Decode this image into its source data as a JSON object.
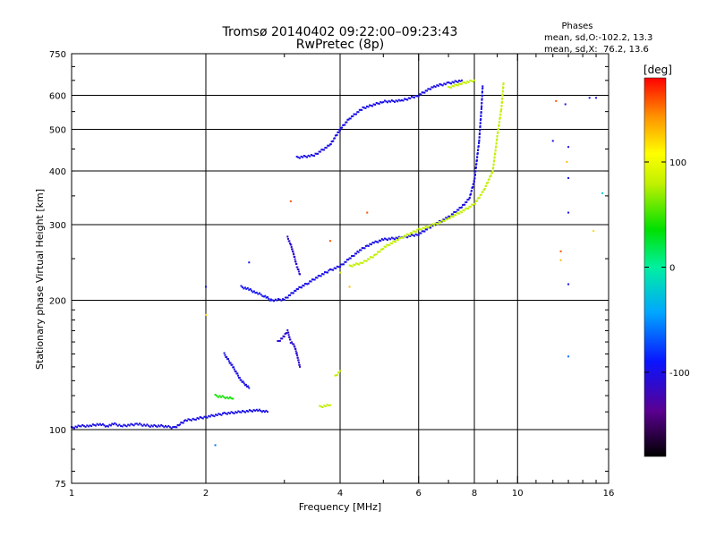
{
  "chart_data": {
    "type": "scatter",
    "title": "Tromsø 20140402 09:22:00–09:23:43",
    "subtitle": "RwPretec (8p)",
    "xlabel": "Frequency [MHz]",
    "ylabel": "Stationary phase Virtual Height [km]",
    "x_scale": "log",
    "y_scale": "log",
    "xlim": [
      1,
      16
    ],
    "ylim": [
      75,
      750
    ],
    "x_ticks": [
      {
        "value": 1,
        "label": "1"
      },
      {
        "value": 2,
        "label": "2"
      },
      {
        "value": 4,
        "label": "4"
      },
      {
        "value": 6,
        "label": "6"
      },
      {
        "value": 8,
        "label": "8"
      },
      {
        "value": 10,
        "label": "10"
      },
      {
        "value": 16,
        "label": "16"
      }
    ],
    "y_ticks": [
      {
        "value": 75,
        "label": "75"
      },
      {
        "value": 100,
        "label": "100"
      },
      {
        "value": 200,
        "label": "200"
      },
      {
        "value": 300,
        "label": "300"
      },
      {
        "value": 400,
        "label": "400"
      },
      {
        "value": 500,
        "label": "500"
      },
      {
        "value": 600,
        "label": "600"
      },
      {
        "value": 750,
        "label": "750"
      }
    ],
    "grid": true,
    "phase_info": {
      "heading": "Phases",
      "line_o": "mean, sd,O:-102.2, 13.3",
      "line_x": "mean, sd,X:  76.2, 13.6"
    },
    "colorbar": {
      "label": "[deg]",
      "range": [
        -180,
        180
      ],
      "ticks": [
        {
          "value": 100,
          "label": "100"
        },
        {
          "value": 0,
          "label": "0"
        },
        {
          "value": -100,
          "label": "-100"
        }
      ]
    },
    "colors": {
      "o_trace": "#1a1adc",
      "x_trace": "#d8ee1a",
      "grid": "#000000"
    },
    "traces": [
      {
        "phase": -100,
        "points": [
          [
            1.0,
            101
          ],
          [
            1.05,
            102
          ],
          [
            1.1,
            102
          ],
          [
            1.15,
            103
          ],
          [
            1.2,
            102
          ],
          [
            1.25,
            103
          ],
          [
            1.3,
            102
          ],
          [
            1.4,
            103
          ],
          [
            1.5,
            102
          ],
          [
            1.6,
            102
          ],
          [
            1.7,
            101
          ],
          [
            1.75,
            103
          ],
          [
            1.8,
            105
          ],
          [
            1.9,
            106
          ],
          [
            2.0,
            107
          ],
          [
            2.2,
            109
          ],
          [
            2.4,
            110
          ],
          [
            2.6,
            111
          ],
          [
            2.75,
            110
          ]
        ]
      },
      {
        "phase": -100,
        "points": [
          [
            2.8,
            200
          ],
          [
            3.0,
            201
          ],
          [
            3.2,
            212
          ],
          [
            3.4,
            220
          ],
          [
            3.6,
            228
          ],
          [
            3.8,
            235
          ],
          [
            4.0,
            240
          ],
          [
            4.2,
            250
          ],
          [
            4.4,
            260
          ],
          [
            4.6,
            268
          ],
          [
            4.8,
            273
          ],
          [
            5.0,
            277
          ],
          [
            5.5,
            280
          ],
          [
            6.0,
            285
          ],
          [
            6.5,
            300
          ],
          [
            7.0,
            312
          ],
          [
            7.5,
            330
          ],
          [
            7.8,
            345
          ],
          [
            8.0,
            380
          ],
          [
            8.2,
            470
          ],
          [
            8.3,
            560
          ],
          [
            8.35,
            630
          ]
        ]
      },
      {
        "phase": -100,
        "points": [
          [
            3.2,
            430
          ],
          [
            3.5,
            435
          ],
          [
            3.8,
            460
          ],
          [
            4.0,
            500
          ],
          [
            4.2,
            530
          ],
          [
            4.5,
            560
          ],
          [
            5.0,
            580
          ],
          [
            5.5,
            583
          ],
          [
            6.0,
            600
          ],
          [
            6.5,
            630
          ],
          [
            7.0,
            640
          ],
          [
            7.5,
            650
          ]
        ]
      },
      {
        "phase": -110,
        "points": [
          [
            3.05,
            280
          ],
          [
            3.1,
            270
          ],
          [
            3.15,
            255
          ],
          [
            3.2,
            240
          ],
          [
            3.25,
            230
          ]
        ]
      },
      {
        "phase": -95,
        "points": [
          [
            2.4,
            215
          ],
          [
            2.5,
            212
          ],
          [
            2.6,
            208
          ],
          [
            2.7,
            205
          ],
          [
            2.8,
            200
          ]
        ]
      },
      {
        "phase": -110,
        "points": [
          [
            2.9,
            160
          ],
          [
            3.0,
            165
          ],
          [
            3.05,
            170
          ],
          [
            3.1,
            160
          ],
          [
            3.15,
            158
          ],
          [
            3.2,
            150
          ],
          [
            3.25,
            140
          ]
        ]
      },
      {
        "phase": -100,
        "points": [
          [
            2.2,
            150
          ],
          [
            2.3,
            140
          ],
          [
            2.4,
            130
          ],
          [
            2.5,
            125
          ]
        ]
      },
      {
        "phase": 80,
        "points": [
          [
            4.2,
            240
          ],
          [
            4.5,
            245
          ],
          [
            4.8,
            255
          ],
          [
            5.0,
            265
          ],
          [
            5.5,
            280
          ],
          [
            6.0,
            292
          ],
          [
            6.5,
            300
          ],
          [
            7.0,
            310
          ],
          [
            7.5,
            322
          ],
          [
            8.0,
            335
          ],
          [
            8.4,
            360
          ],
          [
            8.8,
            400
          ],
          [
            9.0,
            480
          ],
          [
            9.2,
            560
          ],
          [
            9.3,
            640
          ]
        ]
      },
      {
        "phase": 80,
        "points": [
          [
            7.0,
            625
          ],
          [
            7.5,
            640
          ],
          [
            8.0,
            650
          ]
        ]
      },
      {
        "phase": 80,
        "points": [
          [
            3.9,
            133
          ],
          [
            4.0,
            137
          ]
        ]
      },
      {
        "phase": 80,
        "points": [
          [
            3.6,
            113
          ],
          [
            3.8,
            114
          ]
        ]
      },
      {
        "phase": 40,
        "points": [
          [
            2.1,
            120
          ],
          [
            2.3,
            118
          ]
        ]
      }
    ],
    "scatter": [
      {
        "x": 12.2,
        "y": 582,
        "phase": 160
      },
      {
        "x": 12.8,
        "y": 572,
        "phase": -100
      },
      {
        "x": 14.5,
        "y": 592,
        "phase": -100
      },
      {
        "x": 15.0,
        "y": 592,
        "phase": -100
      },
      {
        "x": 12.0,
        "y": 470,
        "phase": -100
      },
      {
        "x": 13.0,
        "y": 455,
        "phase": -100
      },
      {
        "x": 12.9,
        "y": 420,
        "phase": 130
      },
      {
        "x": 13.0,
        "y": 385,
        "phase": -100
      },
      {
        "x": 15.5,
        "y": 355,
        "phase": -20
      },
      {
        "x": 13.0,
        "y": 320,
        "phase": -100
      },
      {
        "x": 12.5,
        "y": 260,
        "phase": 160
      },
      {
        "x": 12.5,
        "y": 248,
        "phase": 130
      },
      {
        "x": 13.0,
        "y": 218,
        "phase": -100
      },
      {
        "x": 14.8,
        "y": 290,
        "phase": 120
      },
      {
        "x": 13.0,
        "y": 148,
        "phase": -60
      },
      {
        "x": 2.0,
        "y": 185,
        "phase": 120
      },
      {
        "x": 2.1,
        "y": 92,
        "phase": -60
      },
      {
        "x": 3.1,
        "y": 340,
        "phase": 160
      },
      {
        "x": 3.8,
        "y": 275,
        "phase": 160
      },
      {
        "x": 4.6,
        "y": 320,
        "phase": 160
      },
      {
        "x": 4.0,
        "y": 232,
        "phase": 80
      },
      {
        "x": 4.2,
        "y": 215,
        "phase": 130
      },
      {
        "x": 2.5,
        "y": 245,
        "phase": -100
      },
      {
        "x": 2.0,
        "y": 215,
        "phase": -100
      }
    ]
  }
}
